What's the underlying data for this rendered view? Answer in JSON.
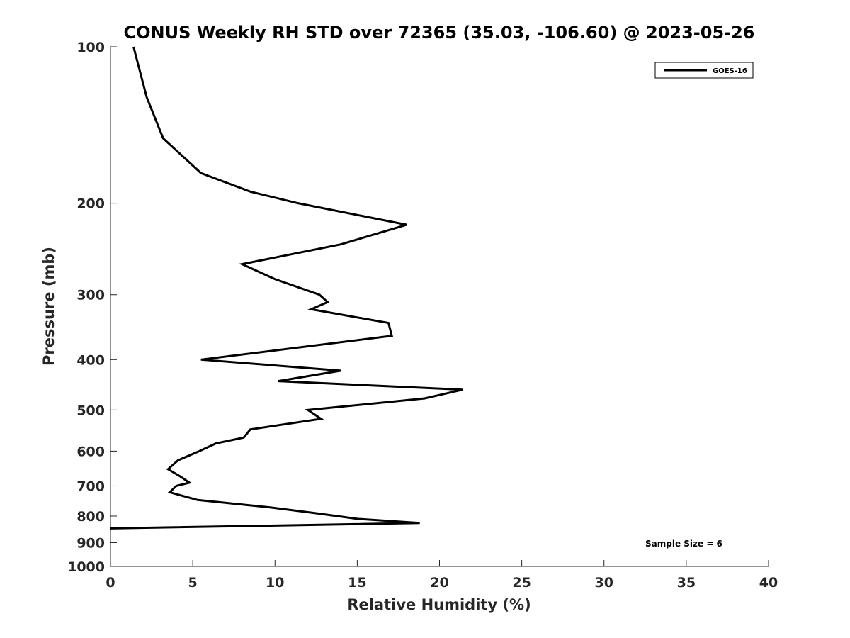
{
  "chart_data": {
    "type": "line",
    "title": "CONUS Weekly RH STD over 72365 (35.03, -106.60) @ 2023-05-26",
    "xlabel": "Relative Humidity (%)",
    "ylabel": "Pressure (mb)",
    "xlim": [
      0,
      40
    ],
    "ylim": [
      100,
      1000
    ],
    "y_scale": "log",
    "y_reversed": true,
    "x_ticks": [
      "0",
      "5",
      "10",
      "15",
      "20",
      "25",
      "30",
      "35",
      "40"
    ],
    "y_ticks": [
      "100",
      "200",
      "300",
      "400",
      "500",
      "600",
      "700",
      "800",
      "900",
      "1000"
    ],
    "grid": false,
    "legend_position": "top-right",
    "annotation": "Sample Size = 6",
    "series": [
      {
        "name": "GOES-16",
        "color": "#000000",
        "points": [
          [
            1.4,
            100
          ],
          [
            2.2,
            125
          ],
          [
            3.2,
            150
          ],
          [
            5.5,
            175
          ],
          [
            8.5,
            190
          ],
          [
            11.4,
            200
          ],
          [
            18.0,
            220
          ],
          [
            14.0,
            240
          ],
          [
            8.0,
            262
          ],
          [
            10.0,
            280
          ],
          [
            12.7,
            300
          ],
          [
            13.2,
            310
          ],
          [
            12.2,
            320
          ],
          [
            16.9,
            340
          ],
          [
            17.1,
            360
          ],
          [
            5.5,
            400
          ],
          [
            14.0,
            420
          ],
          [
            10.2,
            440
          ],
          [
            21.4,
            457
          ],
          [
            19.1,
            475
          ],
          [
            12.0,
            500
          ],
          [
            12.8,
            520
          ],
          [
            8.5,
            545
          ],
          [
            8.1,
            565
          ],
          [
            6.4,
            580
          ],
          [
            5.4,
            600
          ],
          [
            4.1,
            625
          ],
          [
            3.5,
            650
          ],
          [
            4.2,
            670
          ],
          [
            4.8,
            690
          ],
          [
            4.0,
            700
          ],
          [
            3.6,
            720
          ],
          [
            5.3,
            745
          ],
          [
            9.7,
            770
          ],
          [
            12.5,
            790
          ],
          [
            15.0,
            810
          ],
          [
            18.8,
            825
          ],
          [
            0.0,
            845
          ]
        ]
      }
    ]
  }
}
